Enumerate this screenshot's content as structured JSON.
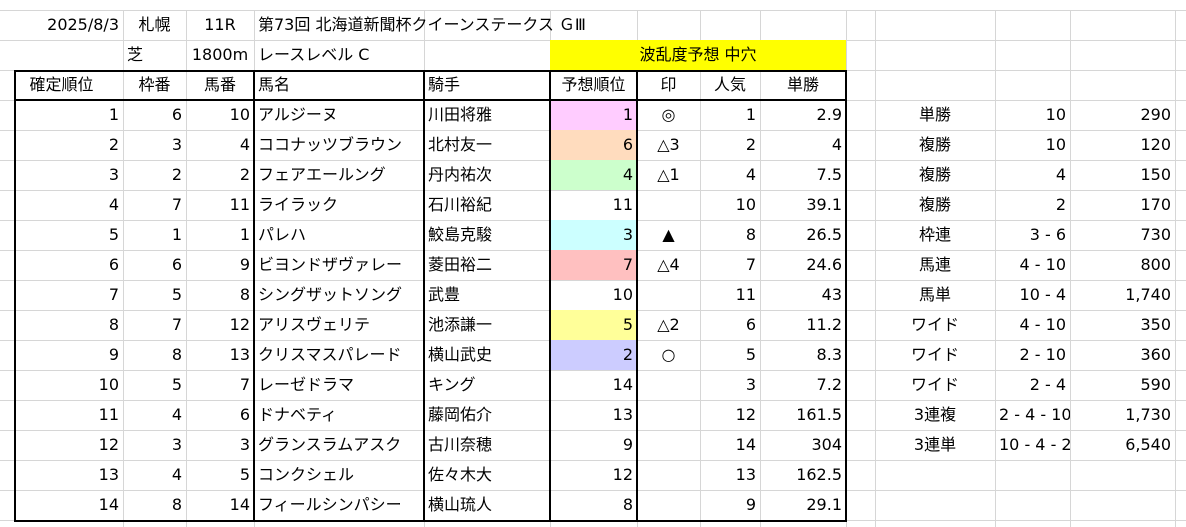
{
  "info": {
    "date": "2025/8/3",
    "venue": "札幌",
    "race_no": "11R",
    "race_name": "第73回 北海道新聞杯クイーンステークス ＧⅢ",
    "surface": "芝",
    "distance": "1800m",
    "race_level": "レースレベル C",
    "forecast_banner": "波乱度予想 中穴"
  },
  "colors": {
    "banner_bg": "#ffff00",
    "rank_1": "#ffccff",
    "rank_2": "#ccccff",
    "rank_3": "#ccffff",
    "rank_4": "#ccffcc",
    "rank_5": "#ffff99",
    "rank_6": "#ffdcbe",
    "rank_7": "#ffc0c0"
  },
  "headers": [
    "確定順位",
    "枠番",
    "馬番",
    "馬名",
    "騎手",
    "予想順位",
    "印",
    "人気",
    "単勝"
  ],
  "rows": [
    {
      "pos": "1",
      "waku": "6",
      "uma": "10",
      "name": "アルジーヌ",
      "jockey": "川田将雅",
      "pred": "1",
      "mark": "◎",
      "pop": "1",
      "odds": "2.9",
      "color": "rank_1"
    },
    {
      "pos": "2",
      "waku": "3",
      "uma": "4",
      "name": "ココナッツブラウン",
      "jockey": "北村友一",
      "pred": "6",
      "mark": "△3",
      "pop": "2",
      "odds": "4",
      "color": "rank_6"
    },
    {
      "pos": "3",
      "waku": "2",
      "uma": "2",
      "name": "フェアエールング",
      "jockey": "丹内祐次",
      "pred": "4",
      "mark": "△1",
      "pop": "4",
      "odds": "7.5",
      "color": "rank_4"
    },
    {
      "pos": "4",
      "waku": "7",
      "uma": "11",
      "name": "ライラック",
      "jockey": "石川裕紀",
      "pred": "11",
      "mark": "",
      "pop": "10",
      "odds": "39.1",
      "color": ""
    },
    {
      "pos": "5",
      "waku": "1",
      "uma": "1",
      "name": "パレハ",
      "jockey": "鮫島克駿",
      "pred": "3",
      "mark": "▲",
      "pop": "8",
      "odds": "26.5",
      "color": "rank_3"
    },
    {
      "pos": "6",
      "waku": "6",
      "uma": "9",
      "name": "ビヨンドザヴァレー",
      "jockey": "菱田裕二",
      "pred": "7",
      "mark": "△4",
      "pop": "7",
      "odds": "24.6",
      "color": "rank_7"
    },
    {
      "pos": "7",
      "waku": "5",
      "uma": "8",
      "name": "シングザットソング",
      "jockey": "武豊",
      "pred": "10",
      "mark": "",
      "pop": "11",
      "odds": "43",
      "color": ""
    },
    {
      "pos": "8",
      "waku": "7",
      "uma": "12",
      "name": "アリスヴェリテ",
      "jockey": "池添謙一",
      "pred": "5",
      "mark": "△2",
      "pop": "6",
      "odds": "11.2",
      "color": "rank_5"
    },
    {
      "pos": "9",
      "waku": "8",
      "uma": "13",
      "name": "クリスマスパレード",
      "jockey": "横山武史",
      "pred": "2",
      "mark": "○",
      "pop": "5",
      "odds": "8.3",
      "color": "rank_2"
    },
    {
      "pos": "10",
      "waku": "5",
      "uma": "7",
      "name": "レーゼドラマ",
      "jockey": "キング",
      "pred": "14",
      "mark": "",
      "pop": "3",
      "odds": "7.2",
      "color": ""
    },
    {
      "pos": "11",
      "waku": "4",
      "uma": "6",
      "name": "ドナベティ",
      "jockey": "藤岡佑介",
      "pred": "13",
      "mark": "",
      "pop": "12",
      "odds": "161.5",
      "color": ""
    },
    {
      "pos": "12",
      "waku": "3",
      "uma": "3",
      "name": "グランスラムアスク",
      "jockey": "古川奈穂",
      "pred": "9",
      "mark": "",
      "pop": "14",
      "odds": "304",
      "color": ""
    },
    {
      "pos": "13",
      "waku": "4",
      "uma": "5",
      "name": "コンクシェル",
      "jockey": "佐々木大",
      "pred": "12",
      "mark": "",
      "pop": "13",
      "odds": "162.5",
      "color": ""
    },
    {
      "pos": "14",
      "waku": "8",
      "uma": "14",
      "name": "フィールシンパシー",
      "jockey": "横山琉人",
      "pred": "8",
      "mark": "",
      "pop": "9",
      "odds": "29.1",
      "color": ""
    }
  ],
  "payouts": [
    {
      "type": "単勝",
      "combo": "10",
      "amount": "290"
    },
    {
      "type": "複勝",
      "combo": "10",
      "amount": "120"
    },
    {
      "type": "複勝",
      "combo": "4",
      "amount": "150"
    },
    {
      "type": "複勝",
      "combo": "2",
      "amount": "170"
    },
    {
      "type": "枠連",
      "combo": "3 - 6",
      "amount": "730"
    },
    {
      "type": "馬連",
      "combo": "4 - 10",
      "amount": "800"
    },
    {
      "type": "馬単",
      "combo": "10 - 4",
      "amount": "1,740"
    },
    {
      "type": "ワイド",
      "combo": "4 - 10",
      "amount": "350"
    },
    {
      "type": "ワイド",
      "combo": "2 - 10",
      "amount": "360"
    },
    {
      "type": "ワイド",
      "combo": "2 - 4",
      "amount": "590"
    },
    {
      "type": "3連複",
      "combo": "2 - 4 - 10",
      "amount": "1,730"
    },
    {
      "type": "3連単",
      "combo": "10 - 4 - 2",
      "amount": "6,540"
    }
  ]
}
